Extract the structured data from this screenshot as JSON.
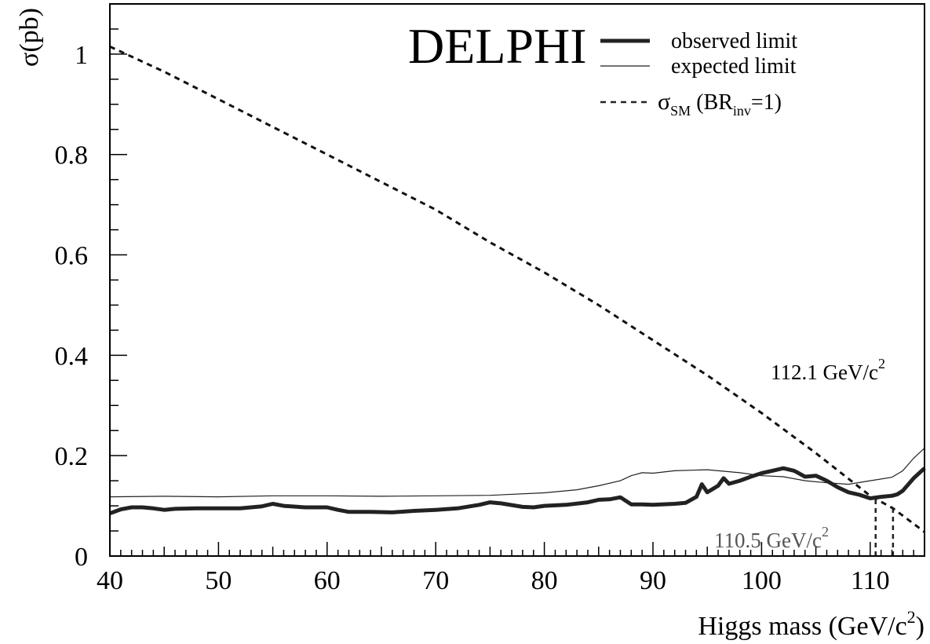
{
  "chart_data": {
    "type": "line",
    "title": "",
    "experiment_label": "DELPHI",
    "xlabel": {
      "main": "Higgs mass (GeV/c",
      "sup": "2",
      "close": ")"
    },
    "ylabel": "σ(pb)",
    "xlim": [
      40,
      115
    ],
    "ylim": [
      0,
      1.1
    ],
    "x_ticks": [
      40,
      50,
      60,
      70,
      80,
      90,
      100,
      110
    ],
    "x_tick_labels": [
      "40",
      "50",
      "60",
      "70",
      "80",
      "90",
      "100",
      "110"
    ],
    "y_ticks": [
      0,
      0.2,
      0.4,
      0.6,
      0.8,
      1.0
    ],
    "y_tick_labels": [
      "0",
      "0.2",
      "0.4",
      "0.6",
      "0.8",
      "1"
    ],
    "grid": false,
    "legend_placement": "top-right",
    "legend": [
      {
        "label": "observed limit",
        "style": "thick"
      },
      {
        "label": "expected limit",
        "style": "thin"
      },
      {
        "label_main": "σ",
        "label_sub": "SM",
        "label_mid": " (BR",
        "label_sub2": "inv",
        "label_end": "=1)",
        "style": "dashed"
      }
    ],
    "series": [
      {
        "name": "observed limit",
        "style": "thick",
        "x": [
          40,
          41,
          42,
          43,
          44,
          45,
          46,
          48,
          50,
          52,
          54,
          55,
          56,
          58,
          60,
          61,
          62,
          64,
          66,
          68,
          70,
          72,
          74,
          75,
          76,
          78,
          79,
          80,
          82,
          84,
          85,
          86,
          87,
          88,
          89,
          90,
          92,
          93,
          94,
          94.5,
          95,
          96,
          96.5,
          97,
          98,
          99,
          100,
          101,
          102,
          103,
          104,
          105,
          106,
          107,
          108,
          109,
          110,
          111,
          112,
          112.5,
          113,
          114,
          115
        ],
        "y": [
          0.085,
          0.093,
          0.097,
          0.097,
          0.095,
          0.092,
          0.094,
          0.095,
          0.095,
          0.095,
          0.099,
          0.104,
          0.1,
          0.097,
          0.097,
          0.092,
          0.088,
          0.088,
          0.087,
          0.09,
          0.092,
          0.095,
          0.102,
          0.107,
          0.105,
          0.098,
          0.097,
          0.1,
          0.102,
          0.107,
          0.112,
          0.113,
          0.117,
          0.103,
          0.103,
          0.102,
          0.104,
          0.106,
          0.118,
          0.143,
          0.127,
          0.14,
          0.155,
          0.144,
          0.15,
          0.158,
          0.165,
          0.17,
          0.175,
          0.17,
          0.158,
          0.16,
          0.15,
          0.137,
          0.127,
          0.122,
          0.115,
          0.118,
          0.12,
          0.123,
          0.13,
          0.155,
          0.175
        ]
      },
      {
        "name": "expected limit",
        "style": "thin",
        "x": [
          40,
          45,
          50,
          55,
          60,
          65,
          70,
          75,
          80,
          83,
          85,
          87,
          88,
          89,
          90,
          92,
          95,
          98,
          100,
          102,
          104,
          106,
          108,
          110,
          112,
          113,
          114,
          115
        ],
        "y": [
          0.118,
          0.119,
          0.118,
          0.12,
          0.12,
          0.119,
          0.12,
          0.121,
          0.126,
          0.132,
          0.14,
          0.15,
          0.16,
          0.166,
          0.165,
          0.17,
          0.172,
          0.166,
          0.16,
          0.158,
          0.15,
          0.146,
          0.143,
          0.15,
          0.157,
          0.17,
          0.195,
          0.215
        ]
      },
      {
        "name": "σSM (BRinv=1)",
        "style": "dashed",
        "x": [
          40,
          45,
          50,
          55,
          60,
          65,
          70,
          75,
          80,
          85,
          90,
          95,
          100,
          105,
          110,
          112.1,
          115
        ],
        "y": [
          1.015,
          0.965,
          0.91,
          0.855,
          0.8,
          0.745,
          0.69,
          0.625,
          0.565,
          0.5,
          0.43,
          0.36,
          0.285,
          0.205,
          0.12,
          0.095,
          0.048
        ]
      }
    ],
    "annotations": [
      {
        "text_main": "112.1 GeV/c",
        "text_sup": "2",
        "x": 112.1,
        "style": "expected"
      },
      {
        "text_main": "110.5 GeV/c",
        "text_sup": "2",
        "x": 110.5,
        "style": "observed"
      }
    ]
  }
}
